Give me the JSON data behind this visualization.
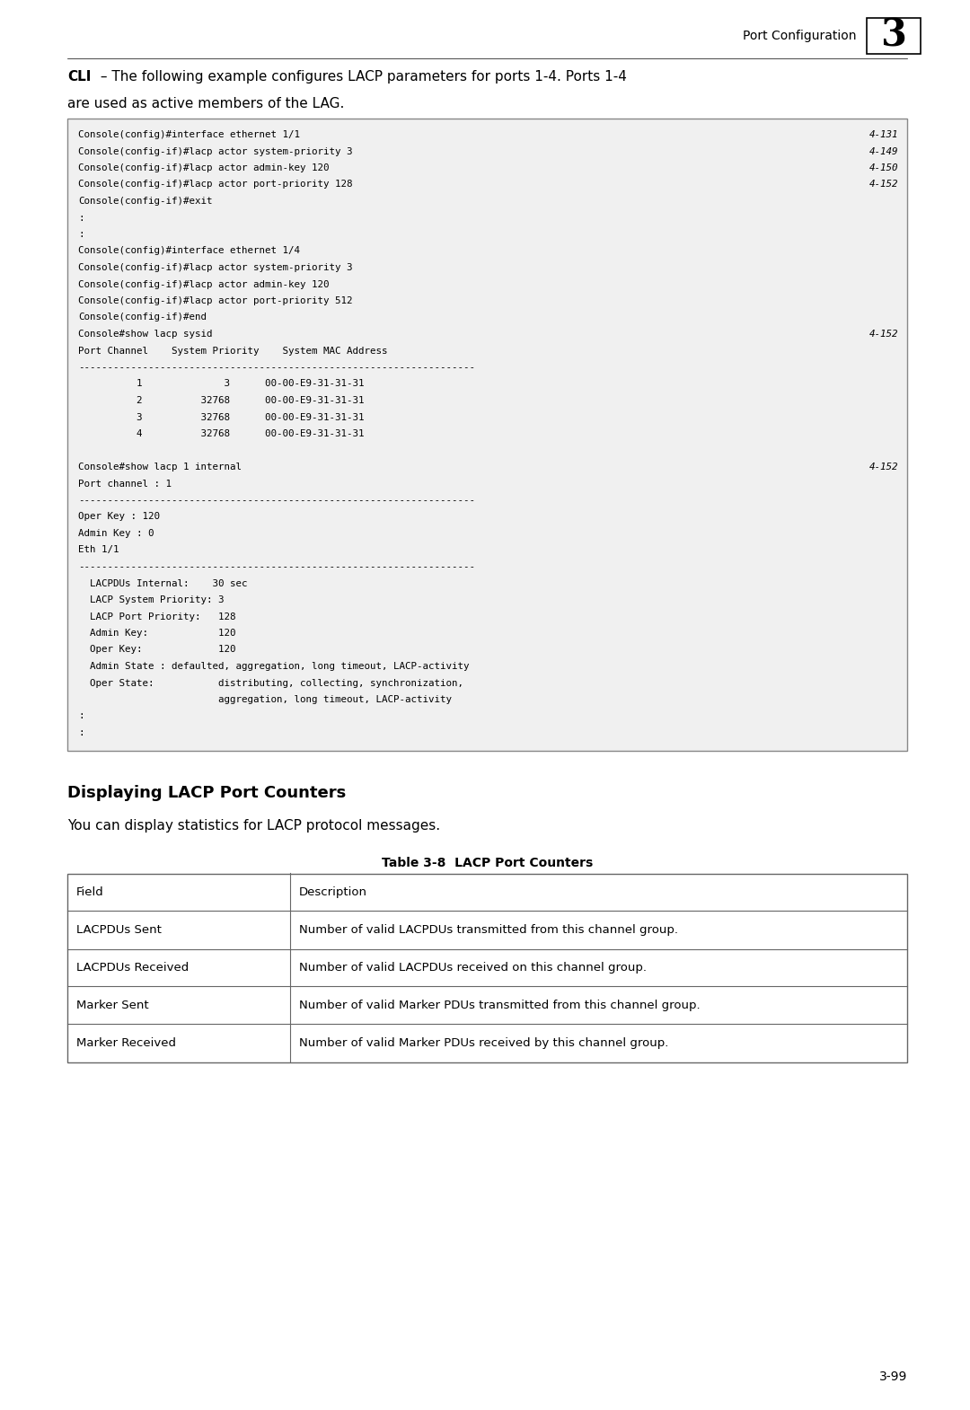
{
  "page_width": 10.8,
  "page_height": 15.7,
  "dpi": 100,
  "background_color": "#ffffff",
  "header_text": "Port Configuration",
  "header_number": "3",
  "cli_bold_text": "CLI",
  "cli_rest": " – The following example configures LACP parameters for ports 1-4. Ports 1-4",
  "cli_line2": "are used as active members of the LAG.",
  "code_block_lines": [
    [
      "Console(config)#interface ethernet 1/1",
      "4-131"
    ],
    [
      "Console(config-if)#lacp actor system-priority 3",
      "4-149"
    ],
    [
      "Console(config-if)#lacp actor admin-key 120",
      "4-150"
    ],
    [
      "Console(config-if)#lacp actor port-priority 128",
      "4-152"
    ],
    [
      "Console(config-if)#exit",
      ""
    ],
    [
      ":",
      ""
    ],
    [
      ":",
      ""
    ],
    [
      "Console(config)#interface ethernet 1/4",
      ""
    ],
    [
      "Console(config-if)#lacp actor system-priority 3",
      ""
    ],
    [
      "Console(config-if)#lacp actor admin-key 120",
      ""
    ],
    [
      "Console(config-if)#lacp actor port-priority 512",
      ""
    ],
    [
      "Console(config-if)#end",
      ""
    ],
    [
      "Console#show lacp sysid",
      "4-152"
    ],
    [
      "Port Channel    System Priority    System MAC Address",
      ""
    ],
    [
      "--------------------------------------------------------------------",
      ""
    ],
    [
      "          1              3      00-00-E9-31-31-31",
      ""
    ],
    [
      "          2          32768      00-00-E9-31-31-31",
      ""
    ],
    [
      "          3          32768      00-00-E9-31-31-31",
      ""
    ],
    [
      "          4          32768      00-00-E9-31-31-31",
      ""
    ],
    [
      "",
      ""
    ],
    [
      "Console#show lacp 1 internal",
      "4-152"
    ],
    [
      "Port channel : 1",
      ""
    ],
    [
      "--------------------------------------------------------------------",
      ""
    ],
    [
      "Oper Key : 120",
      ""
    ],
    [
      "Admin Key : 0",
      ""
    ],
    [
      "Eth 1/1",
      ""
    ],
    [
      "--------------------------------------------------------------------",
      ""
    ],
    [
      "  LACPDUs Internal:    30 sec",
      ""
    ],
    [
      "  LACP System Priority: 3",
      ""
    ],
    [
      "  LACP Port Priority:   128",
      ""
    ],
    [
      "  Admin Key:            120",
      ""
    ],
    [
      "  Oper Key:             120",
      ""
    ],
    [
      "  Admin State : defaulted, aggregation, long timeout, LACP-activity",
      ""
    ],
    [
      "  Oper State:           distributing, collecting, synchronization,",
      ""
    ],
    [
      "                        aggregation, long timeout, LACP-activity",
      ""
    ],
    [
      ":",
      ""
    ],
    [
      ":",
      ""
    ]
  ],
  "section_heading": "Displaying LACP Port Counters",
  "section_body": "You can display statistics for LACP protocol messages.",
  "table_title": "Table 3-8  LACP Port Counters",
  "table_headers": [
    "Field",
    "Description"
  ],
  "table_rows": [
    [
      "LACPDUs Sent",
      "Number of valid LACPDUs transmitted from this channel group."
    ],
    [
      "LACPDUs Received",
      "Number of valid LACPDUs received on this channel group."
    ],
    [
      "Marker Sent",
      "Number of valid Marker PDUs transmitted from this channel group."
    ],
    [
      "Marker Received",
      "Number of valid Marker PDUs received by this channel group."
    ]
  ],
  "page_number": "3-99",
  "code_bg": "#f0f0f0",
  "code_border": "#888888",
  "table_border": "#666666"
}
